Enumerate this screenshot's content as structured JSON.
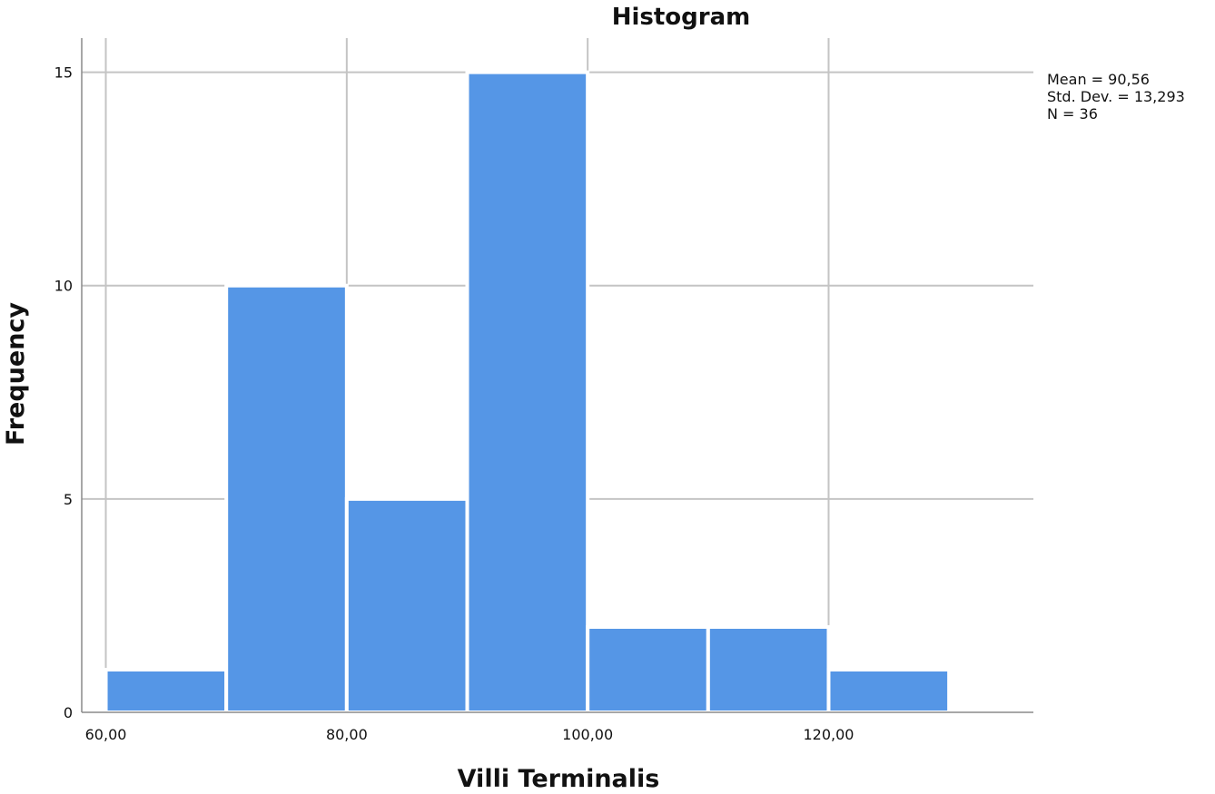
{
  "chart_data": {
    "type": "bar",
    "title": "Histogram",
    "xlabel": "Villi Terminalis",
    "ylabel": "Frequency",
    "bins": [
      {
        "from": 60,
        "to": 70,
        "count": 1
      },
      {
        "from": 70,
        "to": 80,
        "count": 10
      },
      {
        "from": 80,
        "to": 90,
        "count": 5
      },
      {
        "from": 90,
        "to": 100,
        "count": 15
      },
      {
        "from": 100,
        "to": 110,
        "count": 2
      },
      {
        "from": 110,
        "to": 120,
        "count": 2
      },
      {
        "from": 120,
        "to": 130,
        "count": 1
      }
    ],
    "xlim": [
      58,
      137
    ],
    "ylim": [
      0,
      15.8
    ],
    "x_ticks": [
      60,
      80,
      100,
      120
    ],
    "x_tick_labels": [
      "60,00",
      "80,00",
      "100,00",
      "120,00"
    ],
    "y_ticks": [
      0,
      5,
      10,
      15
    ],
    "y_tick_labels": [
      "0",
      "5",
      "10",
      "15"
    ],
    "grid": true,
    "bar_color": "#5596e6",
    "stats": {
      "mean": "Mean = 90,56",
      "std_dev": "Std. Dev. = 13,293",
      "n": "N = 36"
    },
    "stats_placement": "top-right"
  }
}
